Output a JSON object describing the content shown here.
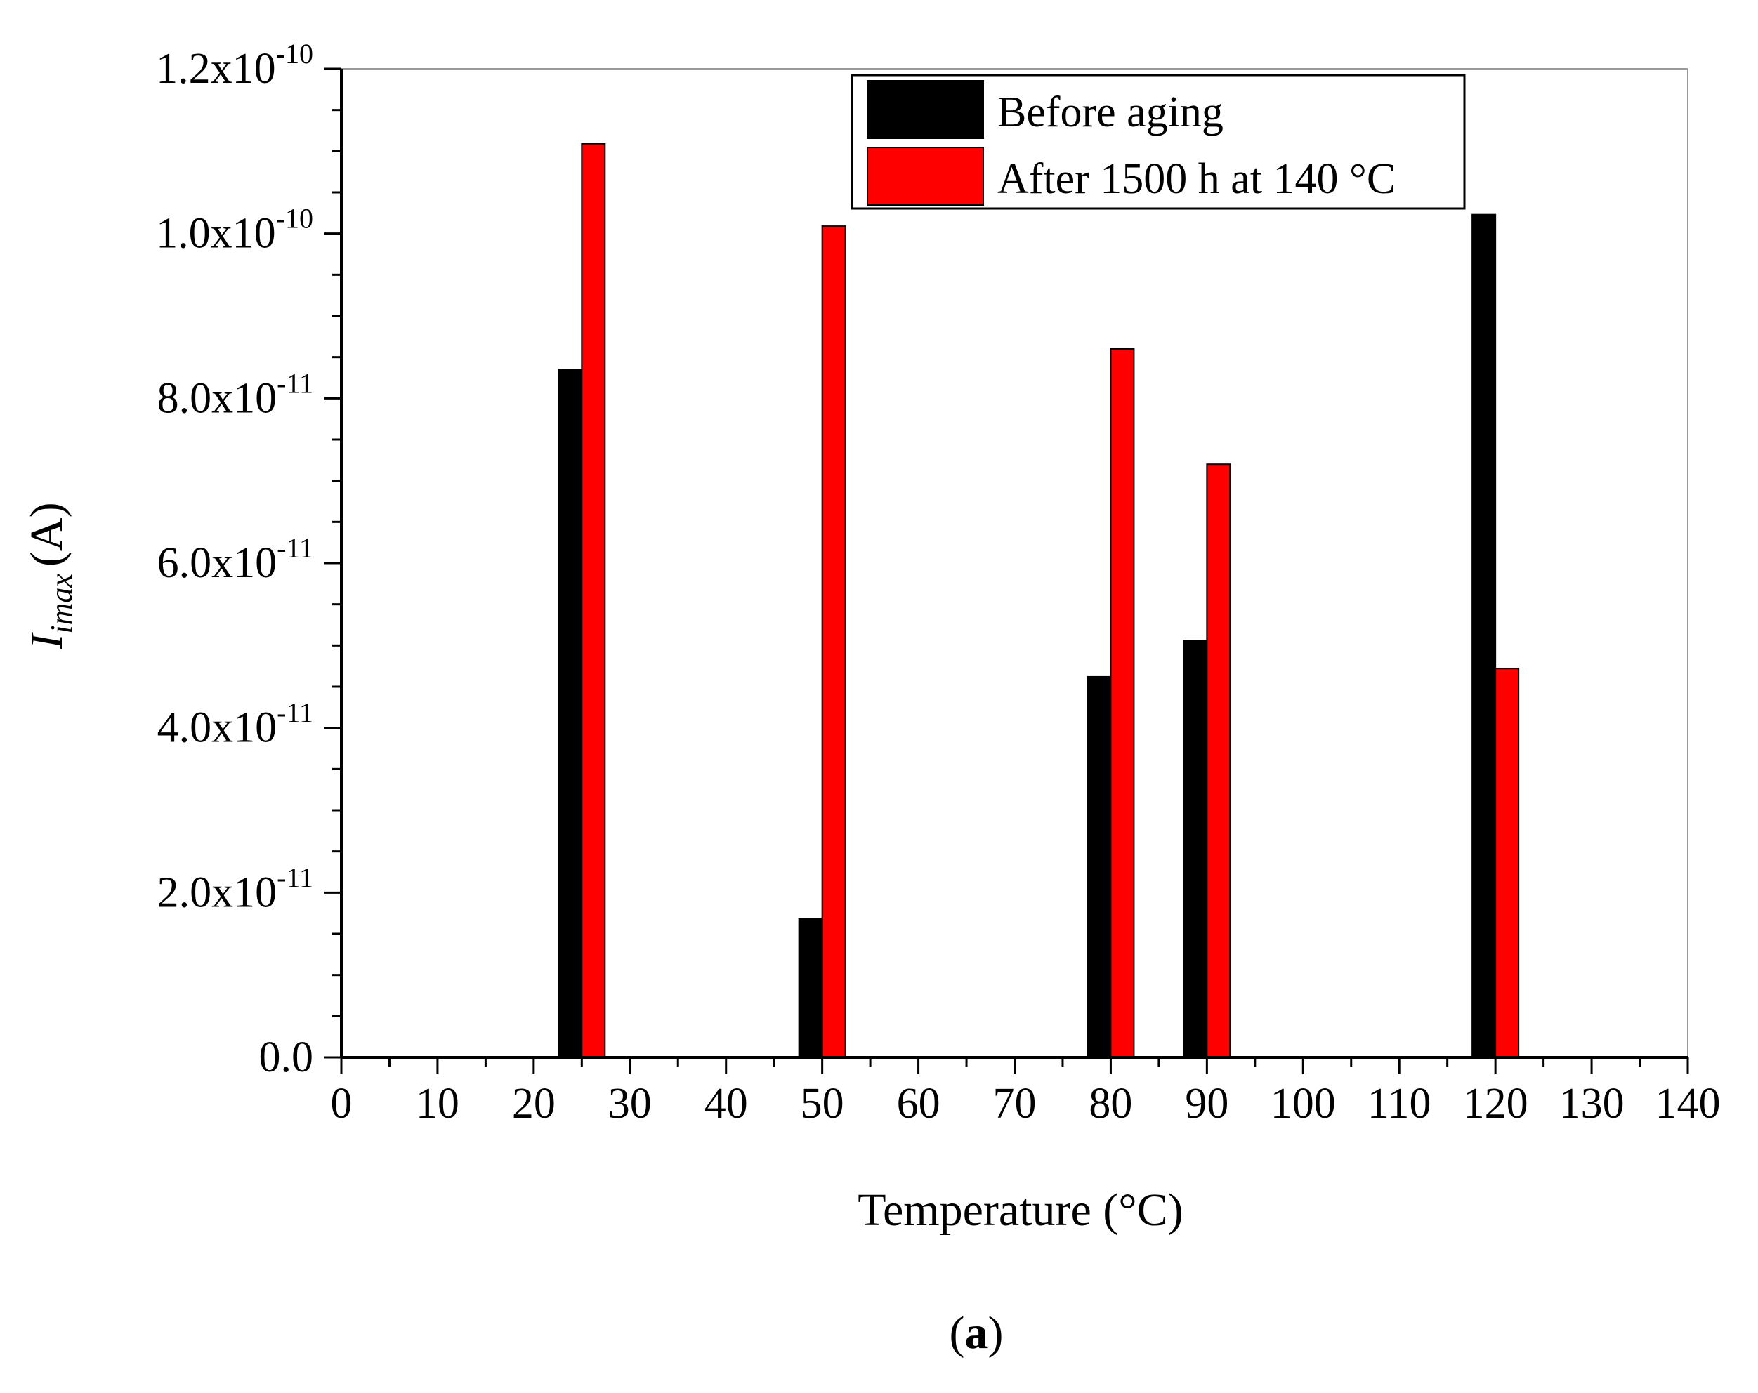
{
  "chart_data": {
    "type": "bar",
    "title": "",
    "xlabel": "Temperature (°C)",
    "ylabel": "I_imax (A)",
    "ylabel_main": "I",
    "ylabel_sub": "imax",
    "ylabel_unit": "(A)",
    "xlim": [
      0,
      140
    ],
    "ylim": [
      0,
      1.2e-10
    ],
    "x_ticks": [
      0,
      10,
      20,
      30,
      40,
      50,
      60,
      70,
      80,
      90,
      100,
      110,
      120,
      130,
      140
    ],
    "y_ticks": [
      {
        "value": 0,
        "mantissa": "0.0",
        "exponent": ""
      },
      {
        "value": 2e-11,
        "mantissa": "2.0x10",
        "exponent": "-11"
      },
      {
        "value": 4e-11,
        "mantissa": "4.0x10",
        "exponent": "-11"
      },
      {
        "value": 6e-11,
        "mantissa": "6.0x10",
        "exponent": "-11"
      },
      {
        "value": 8e-11,
        "mantissa": "8.0x10",
        "exponent": "-11"
      },
      {
        "value": 1e-10,
        "mantissa": "1.0x10",
        "exponent": "-10"
      },
      {
        "value": 1.2e-10,
        "mantissa": "1.2x10",
        "exponent": "-10"
      }
    ],
    "categories": [
      25,
      50,
      80,
      90,
      120
    ],
    "series": [
      {
        "name": "Before aging",
        "color": "#000000",
        "values": [
          8.35e-11,
          1.68e-11,
          4.62e-11,
          5.06e-11,
          1.023e-10
        ]
      },
      {
        "name": "After 1500 h at 140 °C",
        "color": "#ff0000",
        "values": [
          1.109e-10,
          1.009e-10,
          8.6e-11,
          7.2e-11,
          4.72e-11
        ]
      }
    ],
    "legend_position": "top-right",
    "grid": false
  },
  "caption": {
    "open": "(",
    "letter": "a",
    "close": ")"
  }
}
